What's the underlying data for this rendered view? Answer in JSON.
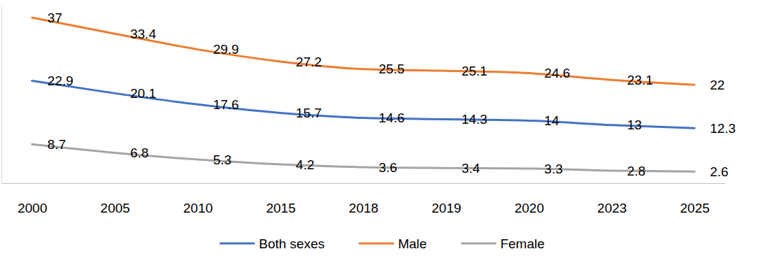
{
  "chart_data": {
    "type": "line",
    "categories": [
      "2000",
      "2005",
      "2010",
      "2015",
      "2018",
      "2019",
      "2020",
      "2023",
      "2025"
    ],
    "series": [
      {
        "name": "Both sexes",
        "color": "#4472c4",
        "values": [
          22.9,
          20.1,
          17.6,
          15.7,
          14.6,
          14.3,
          14,
          13,
          12.3
        ]
      },
      {
        "name": "Male",
        "color": "#ed7d31",
        "values": [
          37,
          33.4,
          29.9,
          27.2,
          25.5,
          25.1,
          24.6,
          23.1,
          22
        ]
      },
      {
        "name": "Female",
        "color": "#a5a5a5",
        "values": [
          8.7,
          6.8,
          5.3,
          4.2,
          3.6,
          3.4,
          3.3,
          2.8,
          2.6
        ]
      }
    ],
    "ylim": [
      0,
      40
    ],
    "yticks": [],
    "tick_labels": "x",
    "data_labels": true,
    "legend": "bottom",
    "line_style": "smooth",
    "marker": "none",
    "grid": false
  }
}
